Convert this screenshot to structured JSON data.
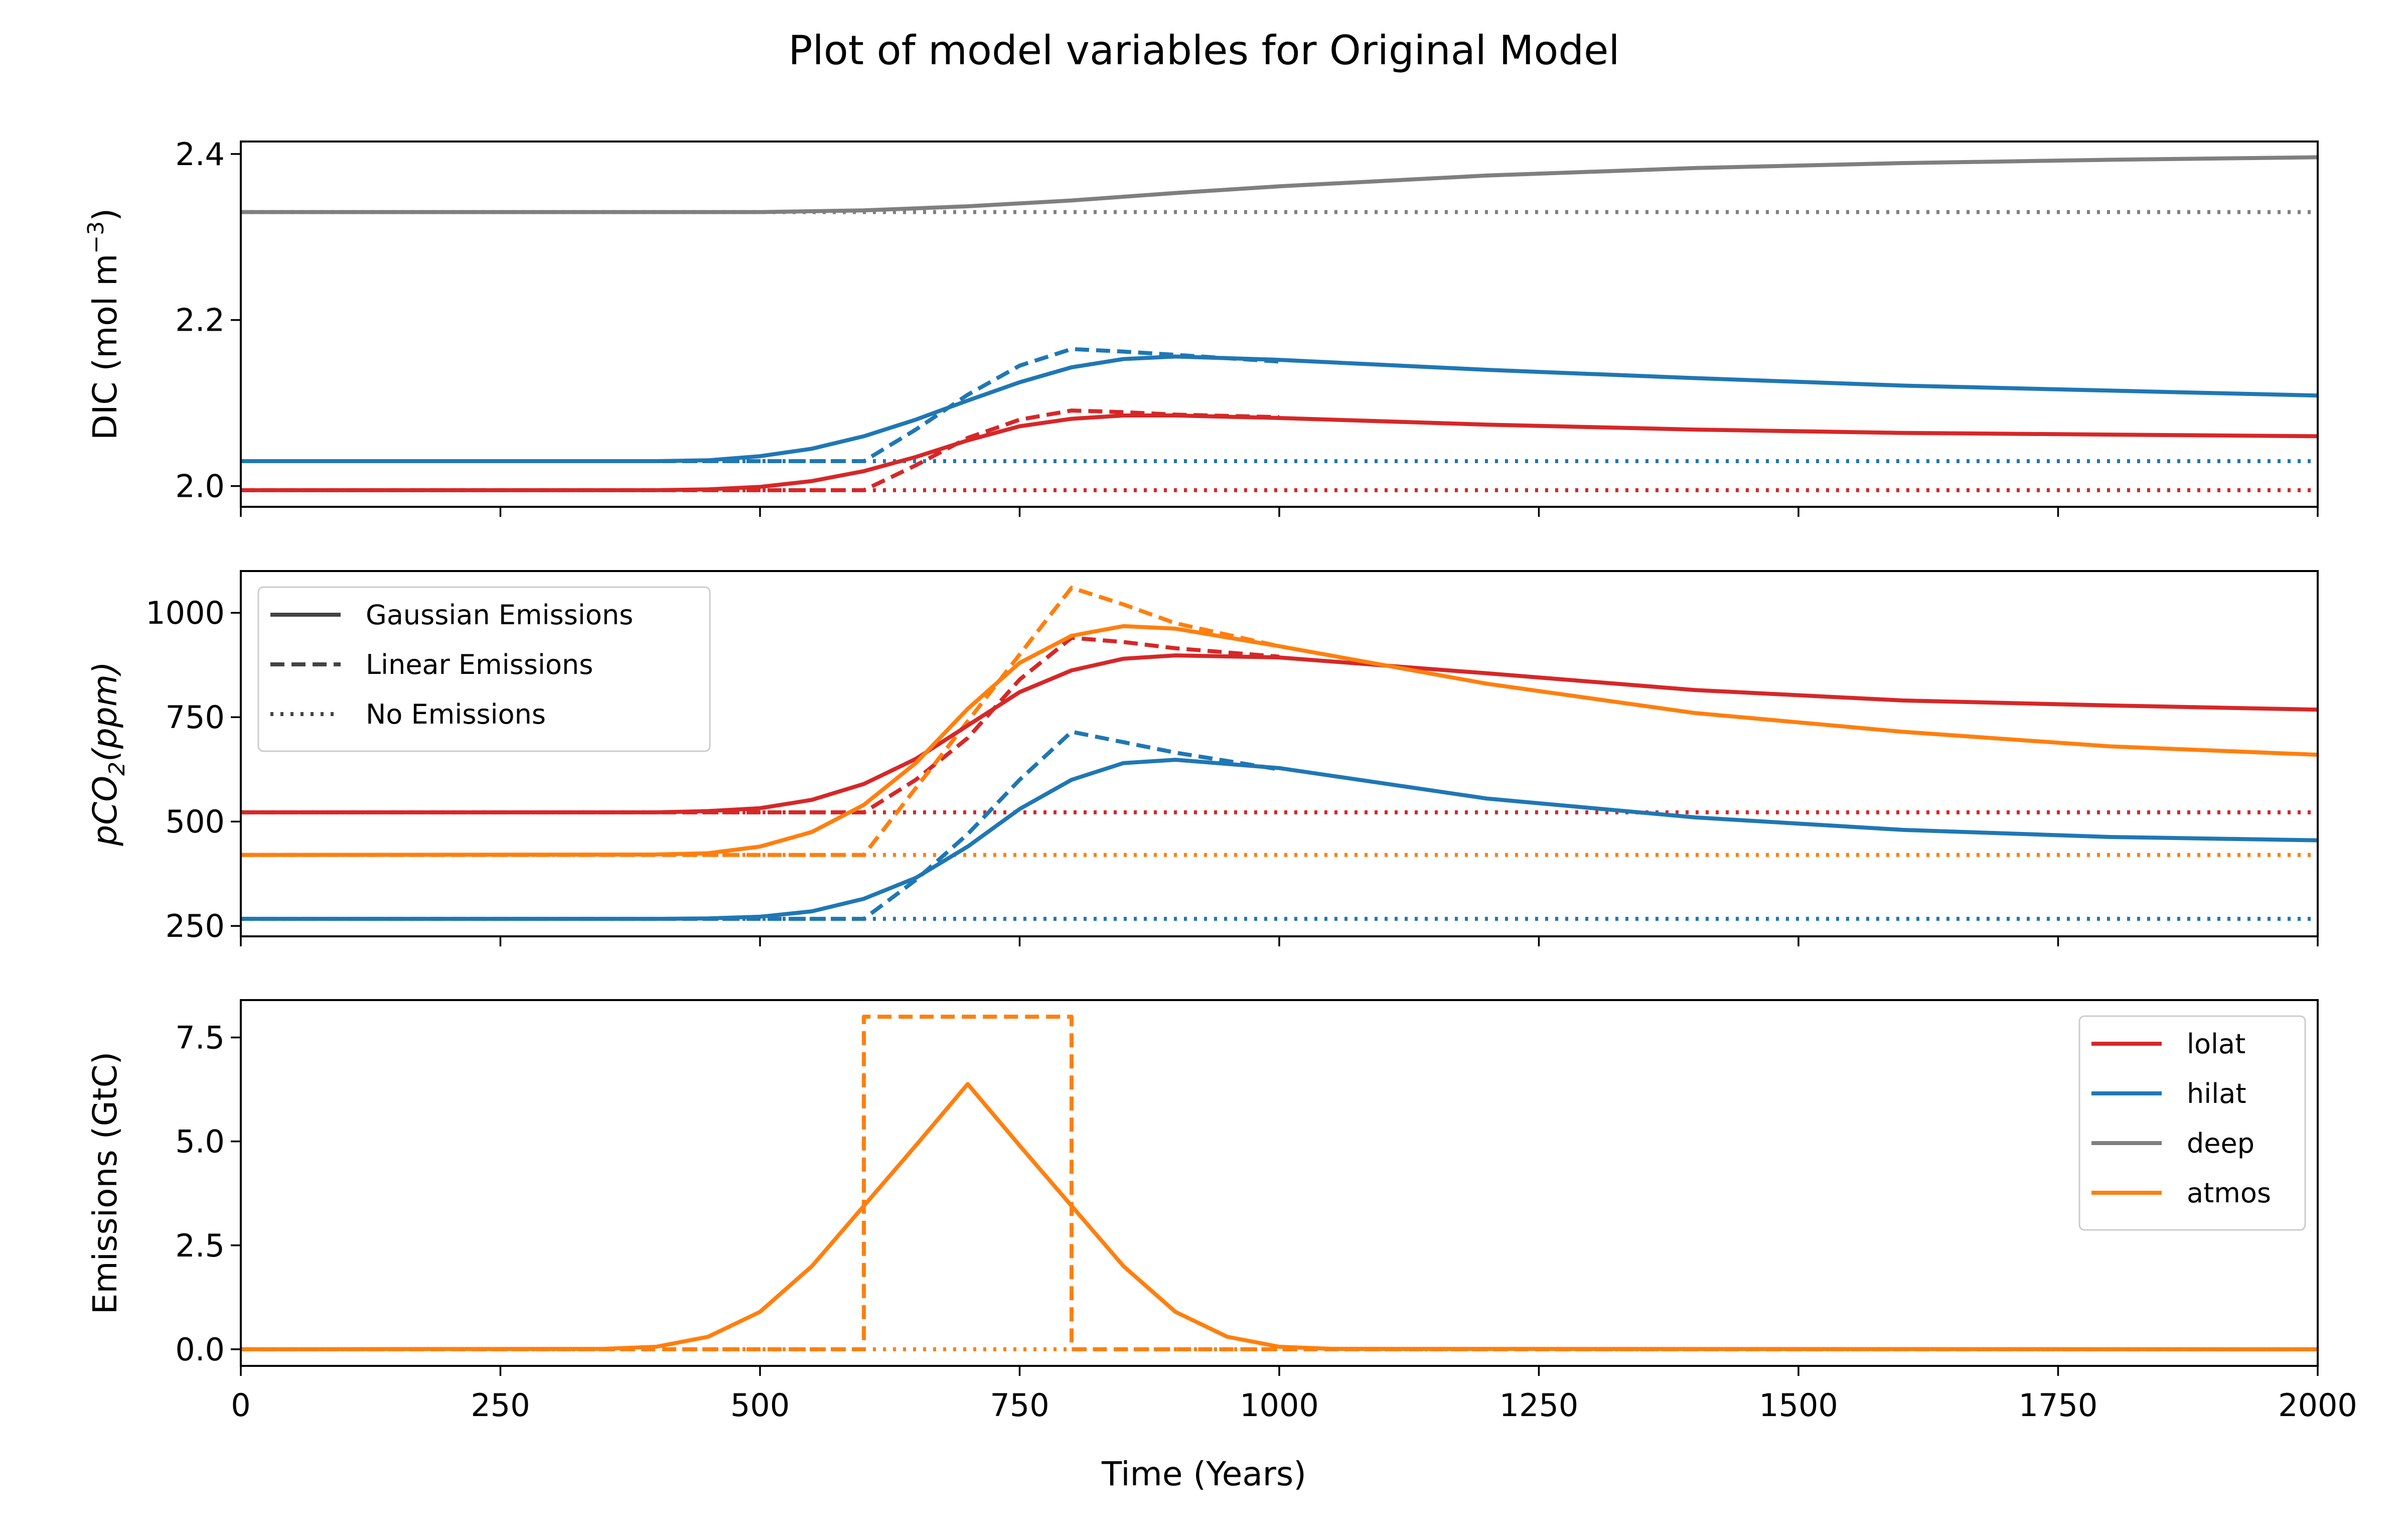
{
  "chart_data": {
    "title": "Plot of model variables for Original Model",
    "xlabel": "Time (Years)",
    "xlim": [
      0,
      2000
    ],
    "x_ticks": [
      0,
      250,
      500,
      750,
      1000,
      1250,
      1500,
      1750,
      2000
    ],
    "x_tick_labels": [
      "0",
      "250",
      "500",
      "750",
      "1000",
      "1250",
      "1500",
      "1750",
      "2000"
    ],
    "colors": {
      "lolat": "#d62728",
      "hilat": "#1f77b4",
      "deep": "#7f7f7f",
      "atmos": "#ff7f0e",
      "style_legend": "#444444"
    },
    "style_legend": {
      "placement": "upper left of middle panel",
      "entries": [
        {
          "label": "Gaussian Emissions",
          "style": "solid"
        },
        {
          "label": "Linear Emissions",
          "style": "dashed"
        },
        {
          "label": "No Emissions",
          "style": "dotted"
        }
      ]
    },
    "color_legend": {
      "placement": "upper right of bottom panel",
      "entries": [
        {
          "label": "lolat",
          "color": "#d62728"
        },
        {
          "label": "hilat",
          "color": "#1f77b4"
        },
        {
          "label": "deep",
          "color": "#7f7f7f"
        },
        {
          "label": "atmos",
          "color": "#ff7f0e"
        }
      ]
    },
    "panels": [
      {
        "type": "line",
        "ylabel": "DIC (mol m",
        "ylabel_sup": "−3",
        "ylabel_tail": ")",
        "ylim": [
          1.975,
          2.415
        ],
        "y_ticks": [
          2.0,
          2.2,
          2.4
        ],
        "y_tick_labels": [
          "2.0",
          "2.2",
          "2.4"
        ],
        "series": [
          {
            "variable": "deep",
            "style": "dotted",
            "points": [
              [
                0,
                2.33
              ],
              [
                2000,
                2.33
              ]
            ]
          },
          {
            "variable": "hilat",
            "style": "dotted",
            "points": [
              [
                0,
                2.03
              ],
              [
                2000,
                2.03
              ]
            ]
          },
          {
            "variable": "lolat",
            "style": "dotted",
            "points": [
              [
                0,
                1.995
              ],
              [
                2000,
                1.995
              ]
            ]
          },
          {
            "variable": "deep",
            "style": "solid",
            "points": [
              [
                0,
                2.33
              ],
              [
                500,
                2.33
              ],
              [
                600,
                2.332
              ],
              [
                700,
                2.337
              ],
              [
                800,
                2.344
              ],
              [
                900,
                2.353
              ],
              [
                1000,
                2.361
              ],
              [
                1200,
                2.374
              ],
              [
                1400,
                2.383
              ],
              [
                1600,
                2.389
              ],
              [
                1800,
                2.393
              ],
              [
                2000,
                2.396
              ]
            ]
          },
          {
            "variable": "hilat",
            "style": "dashed",
            "points": [
              [
                0,
                2.03
              ],
              [
                600,
                2.03
              ],
              [
                650,
                2.068
              ],
              [
                700,
                2.11
              ],
              [
                750,
                2.145
              ],
              [
                800,
                2.165
              ],
              [
                850,
                2.162
              ],
              [
                900,
                2.158
              ],
              [
                1000,
                2.15
              ]
            ]
          },
          {
            "variable": "lolat",
            "style": "dashed",
            "points": [
              [
                0,
                1.995
              ],
              [
                600,
                1.995
              ],
              [
                650,
                2.025
              ],
              [
                700,
                2.058
              ],
              [
                750,
                2.08
              ],
              [
                800,
                2.091
              ],
              [
                850,
                2.089
              ],
              [
                900,
                2.086
              ],
              [
                1000,
                2.083
              ]
            ]
          },
          {
            "variable": "hilat",
            "style": "solid",
            "points": [
              [
                0,
                2.03
              ],
              [
                400,
                2.03
              ],
              [
                450,
                2.031
              ],
              [
                500,
                2.036
              ],
              [
                550,
                2.045
              ],
              [
                600,
                2.06
              ],
              [
                650,
                2.08
              ],
              [
                700,
                2.103
              ],
              [
                750,
                2.125
              ],
              [
                800,
                2.143
              ],
              [
                850,
                2.153
              ],
              [
                900,
                2.156
              ],
              [
                1000,
                2.152
              ],
              [
                1200,
                2.14
              ],
              [
                1400,
                2.13
              ],
              [
                1600,
                2.121
              ],
              [
                1800,
                2.115
              ],
              [
                2000,
                2.109
              ]
            ]
          },
          {
            "variable": "lolat",
            "style": "solid",
            "points": [
              [
                0,
                1.995
              ],
              [
                400,
                1.995
              ],
              [
                450,
                1.996
              ],
              [
                500,
                1.999
              ],
              [
                550,
                2.006
              ],
              [
                600,
                2.018
              ],
              [
                650,
                2.035
              ],
              [
                700,
                2.055
              ],
              [
                750,
                2.072
              ],
              [
                800,
                2.081
              ],
              [
                850,
                2.085
              ],
              [
                900,
                2.085
              ],
              [
                1000,
                2.082
              ],
              [
                1200,
                2.074
              ],
              [
                1400,
                2.068
              ],
              [
                1600,
                2.064
              ],
              [
                1800,
                2.062
              ],
              [
                2000,
                2.06
              ]
            ]
          }
        ]
      },
      {
        "type": "line",
        "ylabel": "pCO",
        "ylabel_sub": "2",
        "ylabel_tail": "(ppm)",
        "ylim": [
          225,
          1100
        ],
        "y_ticks": [
          250,
          500,
          750,
          1000
        ],
        "y_tick_labels": [
          "250",
          "500",
          "750",
          "1000"
        ],
        "series": [
          {
            "variable": "lolat",
            "style": "dotted",
            "points": [
              [
                0,
                522
              ],
              [
                2000,
                522
              ]
            ]
          },
          {
            "variable": "atmos",
            "style": "dotted",
            "points": [
              [
                0,
                420
              ],
              [
                2000,
                420
              ]
            ]
          },
          {
            "variable": "hilat",
            "style": "dotted",
            "points": [
              [
                0,
                267
              ],
              [
                2000,
                267
              ]
            ]
          },
          {
            "variable": "lolat",
            "style": "dashed",
            "points": [
              [
                0,
                522
              ],
              [
                600,
                522
              ],
              [
                650,
                600
              ],
              [
                700,
                700
              ],
              [
                750,
                840
              ],
              [
                800,
                940
              ],
              [
                850,
                930
              ],
              [
                900,
                915
              ],
              [
                1000,
                895
              ]
            ]
          },
          {
            "variable": "atmos",
            "style": "dashed",
            "points": [
              [
                0,
                420
              ],
              [
                600,
                420
              ],
              [
                650,
                580
              ],
              [
                700,
                740
              ],
              [
                750,
                900
              ],
              [
                800,
                1060
              ],
              [
                850,
                1020
              ],
              [
                900,
                975
              ],
              [
                1000,
                920
              ]
            ]
          },
          {
            "variable": "hilat",
            "style": "dashed",
            "points": [
              [
                0,
                267
              ],
              [
                600,
                267
              ],
              [
                650,
                360
              ],
              [
                700,
                470
              ],
              [
                750,
                600
              ],
              [
                800,
                715
              ],
              [
                850,
                690
              ],
              [
                900,
                665
              ],
              [
                1000,
                625
              ]
            ]
          },
          {
            "variable": "lolat",
            "style": "solid",
            "points": [
              [
                0,
                522
              ],
              [
                400,
                522
              ],
              [
                450,
                525
              ],
              [
                500,
                532
              ],
              [
                550,
                552
              ],
              [
                600,
                590
              ],
              [
                650,
                650
              ],
              [
                700,
                730
              ],
              [
                750,
                810
              ],
              [
                800,
                862
              ],
              [
                850,
                890
              ],
              [
                900,
                898
              ],
              [
                1000,
                893
              ],
              [
                1200,
                855
              ],
              [
                1400,
                815
              ],
              [
                1600,
                790
              ],
              [
                1800,
                778
              ],
              [
                2000,
                768
              ]
            ]
          },
          {
            "variable": "atmos",
            "style": "solid",
            "points": [
              [
                0,
                420
              ],
              [
                400,
                421
              ],
              [
                450,
                424
              ],
              [
                500,
                440
              ],
              [
                550,
                475
              ],
              [
                600,
                540
              ],
              [
                650,
                640
              ],
              [
                700,
                770
              ],
              [
                750,
                880
              ],
              [
                800,
                945
              ],
              [
                850,
                968
              ],
              [
                900,
                962
              ],
              [
                1000,
                920
              ],
              [
                1200,
                830
              ],
              [
                1400,
                760
              ],
              [
                1600,
                715
              ],
              [
                1800,
                680
              ],
              [
                2000,
                660
              ]
            ]
          },
          {
            "variable": "hilat",
            "style": "solid",
            "points": [
              [
                0,
                267
              ],
              [
                400,
                267
              ],
              [
                450,
                268
              ],
              [
                500,
                272
              ],
              [
                550,
                285
              ],
              [
                600,
                315
              ],
              [
                650,
                365
              ],
              [
                700,
                440
              ],
              [
                750,
                530
              ],
              [
                800,
                600
              ],
              [
                850,
                640
              ],
              [
                900,
                648
              ],
              [
                1000,
                628
              ],
              [
                1200,
                555
              ],
              [
                1400,
                510
              ],
              [
                1600,
                480
              ],
              [
                1800,
                463
              ],
              [
                2000,
                455
              ]
            ]
          }
        ]
      },
      {
        "type": "line",
        "ylabel": "Emissions (GtC)",
        "ylim": [
          -0.4,
          8.4
        ],
        "y_ticks": [
          0.0,
          2.5,
          5.0,
          7.5
        ],
        "y_tick_labels": [
          "0.0",
          "2.5",
          "5.0",
          "7.5"
        ],
        "series": [
          {
            "variable": "atmos",
            "style": "dotted",
            "points": [
              [
                0,
                0
              ],
              [
                2000,
                0
              ]
            ]
          },
          {
            "variable": "atmos",
            "style": "dashed",
            "points": [
              [
                0,
                0
              ],
              [
                600,
                0
              ],
              [
                600,
                8
              ],
              [
                800,
                8
              ],
              [
                800,
                0
              ],
              [
                2000,
                0
              ]
            ]
          },
          {
            "variable": "atmos",
            "style": "solid",
            "points": [
              [
                0,
                0
              ],
              [
                350,
                0.01
              ],
              [
                400,
                0.06
              ],
              [
                450,
                0.3
              ],
              [
                500,
                0.9
              ],
              [
                550,
                2.0
              ],
              [
                600,
                3.45
              ],
              [
                650,
                4.9
              ],
              [
                700,
                6.38
              ],
              [
                750,
                4.9
              ],
              [
                800,
                3.45
              ],
              [
                850,
                2.0
              ],
              [
                900,
                0.9
              ],
              [
                950,
                0.3
              ],
              [
                1000,
                0.06
              ],
              [
                1050,
                0.01
              ],
              [
                2000,
                0
              ]
            ]
          }
        ]
      }
    ]
  }
}
